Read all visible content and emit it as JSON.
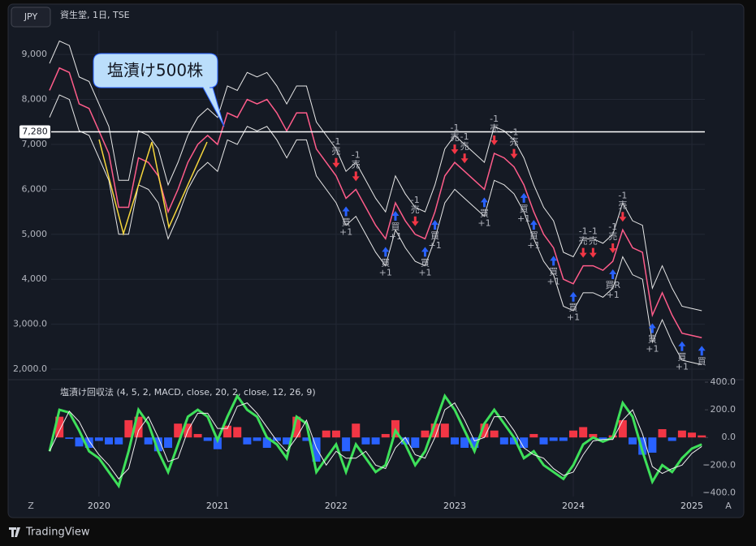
{
  "toolbar": {
    "currency": "JPY",
    "symbol": "資生堂, 1日, TSE"
  },
  "axis_buttons": [
    "Z",
    "A"
  ],
  "footer": {
    "brand": "TradingView"
  },
  "chart_data": [
    {
      "type": "line",
      "annotation": "塩漬け500株",
      "ylim": [
        1820,
        9490
      ],
      "yticks": [
        2000,
        3000,
        4000,
        5000,
        6000,
        7000,
        8000,
        9000
      ],
      "ytick_labels": [
        "2,000.0",
        "3,000.0",
        "4,000",
        "5,000",
        "6,000",
        "7,000",
        "8,000",
        "9,000"
      ],
      "grid": true,
      "hline": {
        "value": 7280,
        "label": "7,280",
        "color": "#ffffff"
      },
      "series": [
        {
          "color": "#ff5c8a",
          "values": [
            8200,
            8700,
            8600,
            7900,
            7800,
            7300,
            6800,
            5600,
            5600,
            6700,
            6600,
            6300,
            5500,
            6000,
            6600,
            7000,
            7200,
            7000,
            7700,
            7600,
            8000,
            7900,
            8000,
            7700,
            7300,
            7700,
            7700,
            6900,
            6600,
            6300,
            5800,
            6000,
            5600,
            5200,
            4900,
            5700,
            5300,
            5000,
            4900,
            5500,
            6300,
            6600,
            6400,
            6200,
            6000,
            6800,
            6700,
            6500,
            6100,
            5500,
            5000,
            4700,
            4000,
            3900,
            4300,
            4300,
            4200,
            4400,
            5100,
            4700,
            4600,
            3200,
            3700,
            3200,
            2800,
            2750,
            2700
          ]
        },
        {
          "color": "#e8e8e8",
          "values": [
            8800,
            9300,
            9200,
            8500,
            8400,
            7900,
            7400,
            6200,
            6200,
            7300,
            7200,
            6900,
            6100,
            6600,
            7200,
            7600,
            7800,
            7600,
            8300,
            8200,
            8600,
            8500,
            8600,
            8300,
            7900,
            8300,
            8300,
            7500,
            7200,
            6900,
            6400,
            6600,
            6200,
            5800,
            5500,
            6300,
            5900,
            5600,
            5500,
            6100,
            6900,
            7200,
            7000,
            6800,
            6600,
            7400,
            7300,
            7100,
            6700,
            6100,
            5600,
            5300,
            4600,
            4500,
            4900,
            4900,
            4800,
            5000,
            5700,
            5300,
            5200,
            3800,
            4300,
            3800,
            3400,
            3350,
            3300
          ]
        },
        {
          "color": "#e8e8e8",
          "values": [
            7600,
            8100,
            8000,
            7300,
            7200,
            6700,
            6200,
            5000,
            5000,
            6100,
            6000,
            5700,
            4900,
            5400,
            6000,
            6400,
            6600,
            6400,
            7100,
            7000,
            7400,
            7300,
            7400,
            7100,
            6700,
            7100,
            7100,
            6300,
            6000,
            5700,
            5200,
            5400,
            5000,
            4600,
            4300,
            5100,
            4700,
            4400,
            4300,
            4900,
            5700,
            6000,
            5800,
            5600,
            5400,
            6200,
            6100,
            5900,
            5500,
            4900,
            4400,
            4100,
            3400,
            3300,
            3700,
            3700,
            3600,
            3800,
            4500,
            4100,
            4000,
            2600,
            3100,
            2600,
            2200,
            2150,
            2100
          ]
        }
      ],
      "signals": [
        {
          "at": 29,
          "side": "sell",
          "label": "売",
          "qty": "-1"
        },
        {
          "at": 31,
          "side": "sell",
          "label": "売",
          "qty": "-1"
        },
        {
          "at": 37,
          "side": "sell",
          "label": "売",
          "qty": "-1"
        },
        {
          "at": 41,
          "side": "sell",
          "label": "売",
          "qty": "-1"
        },
        {
          "at": 42,
          "side": "sell",
          "label": "売",
          "qty": "-1"
        },
        {
          "at": 45,
          "side": "sell",
          "label": "売",
          "qty": "-1"
        },
        {
          "at": 47,
          "side": "sell",
          "label": "売",
          "qty": "-1"
        },
        {
          "at": 54,
          "side": "sell",
          "label": "売",
          "qty": "-1"
        },
        {
          "at": 55,
          "side": "sell",
          "label": "売",
          "qty": "-1"
        },
        {
          "at": 57,
          "side": "sell",
          "label": "売",
          "qty": "-1"
        },
        {
          "at": 58,
          "side": "sell",
          "label": "売",
          "qty": "-1"
        },
        {
          "at": 30,
          "side": "buy",
          "label": "買",
          "qty": "+1"
        },
        {
          "at": 34,
          "side": "buy",
          "label": "買",
          "qty": "+1"
        },
        {
          "at": 35,
          "side": "buy",
          "label": "買",
          "qty": "+1"
        },
        {
          "at": 38,
          "side": "buy",
          "label": "買",
          "qty": "+1"
        },
        {
          "at": 39,
          "side": "buy",
          "label": "買",
          "qty": "+1"
        },
        {
          "at": 44,
          "side": "buy",
          "label": "買",
          "qty": "+1"
        },
        {
          "at": 48,
          "side": "buy",
          "label": "買",
          "qty": "+1"
        },
        {
          "at": 49,
          "side": "buy",
          "label": "買",
          "qty": "+1"
        },
        {
          "at": 51,
          "side": "buy",
          "label": "買",
          "qty": "+1"
        },
        {
          "at": 53,
          "side": "buy",
          "label": "買",
          "qty": "+1"
        },
        {
          "at": 57,
          "side": "buy",
          "label": "買R",
          "qty": "+1"
        },
        {
          "at": 61,
          "side": "buy",
          "label": "買",
          "qty": "+1"
        },
        {
          "at": 64,
          "side": "buy",
          "label": "買",
          "qty": "+1"
        },
        {
          "at": 66,
          "side": "buy",
          "label": "買"
        }
      ]
    },
    {
      "type": "macd",
      "title": "塩漬け回収法 (4, 5, 2, MACD, close, 20, 2, close, 12, 26, 9)",
      "categories": [
        null,
        null,
        null,
        null,
        null,
        "2020",
        null,
        null,
        null,
        null,
        null,
        null,
        null,
        null,
        null,
        null,
        null,
        "2021",
        null,
        null,
        null,
        null,
        null,
        null,
        null,
        null,
        null,
        null,
        null,
        "2022",
        null,
        null,
        null,
        null,
        null,
        null,
        null,
        null,
        null,
        null,
        null,
        "2023",
        null,
        null,
        null,
        null,
        null,
        null,
        null,
        null,
        null,
        null,
        null,
        "2024",
        null,
        null,
        null,
        null,
        null,
        null,
        null,
        null,
        null,
        null,
        null,
        "2025",
        null
      ],
      "ylim": [
        -427,
        406
      ],
      "yticks": [
        {
          "value": 400,
          "label": "400.0"
        },
        {
          "value": 200,
          "label": "200.0"
        },
        {
          "value": 0,
          "label": "0.0"
        },
        {
          "value": -200,
          "label": "−200.0"
        },
        {
          "value": -400,
          "label": "−400.0"
        }
      ],
      "series": [
        {
          "kind": "bar",
          "color": "#f23645",
          "negative_color": "#2962ff",
          "values": [
            0,
            150,
            -10,
            -65,
            -75,
            -25,
            -50,
            -50,
            125,
            150,
            -50,
            -100,
            -75,
            100,
            100,
            25,
            -25,
            -85,
            85,
            75,
            -50,
            -25,
            -75,
            -25,
            -50,
            150,
            -25,
            -175,
            50,
            50,
            -100,
            100,
            -50,
            -50,
            25,
            125,
            -50,
            -75,
            50,
            100,
            100,
            -50,
            -75,
            -75,
            100,
            50,
            -50,
            -50,
            -75,
            25,
            -50,
            -25,
            -25,
            50,
            75,
            25,
            -15,
            15,
            125,
            -50,
            -125,
            -110,
            60,
            -25,
            50,
            35,
            15
          ]
        },
        {
          "kind": "line",
          "color": "#3ee05a",
          "width": 3,
          "values": [
            -100,
            200,
            180,
            50,
            -100,
            -150,
            -250,
            -350,
            -100,
            200,
            100,
            -100,
            -250,
            -50,
            150,
            200,
            150,
            -20,
            150,
            300,
            200,
            150,
            0,
            -50,
            -150,
            150,
            100,
            -250,
            -150,
            -50,
            -250,
            -50,
            -150,
            -250,
            -200,
            50,
            -50,
            -200,
            -100,
            100,
            300,
            200,
            50,
            -100,
            100,
            200,
            100,
            0,
            -150,
            -100,
            -200,
            -250,
            -300,
            -200,
            -50,
            0,
            -30,
            0,
            250,
            150,
            -100,
            -320,
            -200,
            -250,
            -150,
            -80,
            -50
          ]
        },
        {
          "kind": "line",
          "color": "#f0f0f0",
          "width": 1,
          "values": [
            -100,
            50,
            190,
            115,
            -25,
            -125,
            -200,
            -300,
            -225,
            50,
            150,
            0,
            -175,
            -150,
            50,
            175,
            175,
            65,
            65,
            225,
            250,
            175,
            75,
            -25,
            -100,
            0,
            125,
            -75,
            -200,
            -100,
            -150,
            -150,
            -100,
            -200,
            -225,
            -75,
            0,
            -125,
            -150,
            0,
            200,
            250,
            125,
            -25,
            0,
            150,
            150,
            50,
            -75,
            -125,
            -150,
            -225,
            -275,
            -250,
            -125,
            -25,
            -15,
            -15,
            125,
            200,
            25,
            -210,
            -260,
            -225,
            -200,
            -115,
            -65
          ]
        }
      ]
    }
  ]
}
